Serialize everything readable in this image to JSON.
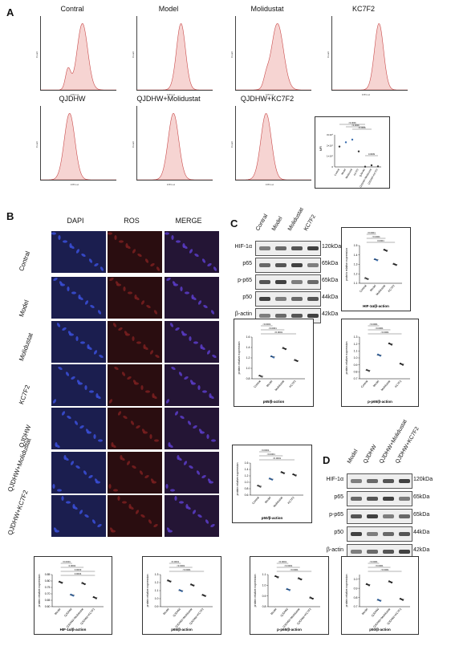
{
  "panel_a": {
    "letter": "A",
    "histograms": [
      {
        "title": "Contral",
        "xlabel": "FITC-H",
        "ylabel": "Count"
      },
      {
        "title": "Model",
        "xlabel": "FITC-H",
        "ylabel": "Count"
      },
      {
        "title": "Molidustat",
        "xlabel": "FITC-H",
        "ylabel": "Count"
      },
      {
        "title": "KC7F2",
        "xlabel": "FITC-H",
        "ylabel": "Count"
      },
      {
        "title": "QJDHW",
        "xlabel": "FITC-H",
        "ylabel": "Count"
      },
      {
        "title": "QJDHW+Molidustat",
        "xlabel": "FITC-H",
        "ylabel": "Count"
      },
      {
        "title": "QJDHW+KC7F2",
        "xlabel": "FITC-H",
        "ylabel": "Count"
      }
    ],
    "mfi_ylabel": "MFI",
    "mfi_yticks": [
      "0",
      "1×10⁴",
      "2×10⁴",
      "3×10⁴"
    ],
    "mfi_sig": [
      "<0.0001",
      "<0.0001",
      "<0.0001",
      "0.0009"
    ],
    "mfi_groups": [
      "Contral",
      "Model",
      "Molidustat",
      "KC7F2",
      "QJDHW",
      "QJDHW+Molidustat",
      "QJDHW+KC7F2"
    ]
  },
  "panel_b": {
    "letter": "B",
    "columns": [
      "DAPI",
      "ROS",
      "MERGE"
    ],
    "rows": [
      "Contral",
      "Model",
      "Molidustat",
      "KC7F2",
      "QJDHW",
      "QJDHW+Molidustat",
      "QJDHW+KC7F2"
    ]
  },
  "panel_c": {
    "letter": "C",
    "lanes": [
      "Contral",
      "Model",
      "Molidustat",
      "KC7F2"
    ],
    "proteins": [
      "HIF-1α",
      "p65",
      "p-p65",
      "p50",
      "β-actin"
    ],
    "sizes": [
      "120kDa",
      "65kDa",
      "65kDa",
      "44kDa",
      "42kDa"
    ]
  },
  "panel_d": {
    "letter": "D",
    "lanes": [
      "Model",
      "QJDHW",
      "QJDHW+Molidustat",
      "QJDHW+KC7F2"
    ],
    "proteins": [
      "HIF-1α",
      "p65",
      "p-p65",
      "p50",
      "β-actin"
    ],
    "sizes": [
      "120kDa",
      "65kDa",
      "65kDa",
      "44kDa",
      "42kDa"
    ]
  },
  "chart_data": [
    {
      "type": "scatter",
      "id": "c_hif",
      "xlabel": "HIF-1α/β-action",
      "ylabel": "protein relative expression",
      "categories": [
        "Contral",
        "Model",
        "Molidustat",
        "KC7F2"
      ],
      "values": [
        1.15,
        1.35,
        1.45,
        1.3
      ],
      "ylim": [
        1.1,
        1.5
      ],
      "yticks": [
        "1.1",
        "1.2",
        "1.3",
        "1.4",
        "1.5"
      ],
      "colors": [
        "#555555",
        "#3b6fb0",
        "#333333",
        "#333333"
      ],
      "sig": [
        "<0.0001",
        "<0.0001",
        "0.0001"
      ]
    },
    {
      "type": "scatter",
      "id": "c_p65",
      "xlabel": "p65/β-action",
      "ylabel": "protein relative expression",
      "categories": [
        "Contral",
        "Model",
        "Molidustat",
        "KC7F2"
      ],
      "values": [
        0.85,
        1.22,
        1.38,
        1.15
      ],
      "ylim": [
        0.8,
        1.6
      ],
      "yticks": [
        "0.8",
        "1.0",
        "1.2",
        "1.4",
        "1.6"
      ],
      "colors": [
        "#555555",
        "#3b6fb0",
        "#333333",
        "#333333"
      ],
      "sig": [
        "<0.0001",
        "<0.0001",
        "<0.0001"
      ]
    },
    {
      "type": "scatter",
      "id": "c_pp65",
      "xlabel": "p-p65/β-action",
      "ylabel": "protein relative expression",
      "categories": [
        "Contral",
        "Model",
        "Molidustat",
        "KC7F2"
      ],
      "values": [
        0.82,
        1.04,
        1.2,
        0.91
      ],
      "ylim": [
        0.7,
        1.3
      ],
      "yticks": [
        "0.7",
        "0.8",
        "0.9",
        "1.0",
        "1.1",
        "1.2",
        "1.3"
      ],
      "colors": [
        "#555555",
        "#3b6fb0",
        "#333333",
        "#333333"
      ],
      "sig": [
        "<0.0001",
        "<0.0001",
        "<0.0001"
      ]
    },
    {
      "type": "scatter",
      "id": "c_p50",
      "xlabel": "p50/β-action",
      "ylabel": "protein relative expression",
      "categories": [
        "Contral",
        "Model",
        "Molidustat",
        "KC7F2"
      ],
      "values": [
        0.88,
        1.1,
        1.3,
        1.23
      ],
      "ylim": [
        0.6,
        1.6
      ],
      "yticks": [
        "0.6",
        "0.8",
        "1.0",
        "1.2",
        "1.4",
        "1.6"
      ],
      "colors": [
        "#555555",
        "#3b6fb0",
        "#333333",
        "#333333"
      ],
      "sig": [
        "<0.0001",
        "<0.0001",
        "<0.0001"
      ]
    },
    {
      "type": "scatter",
      "id": "d_hif",
      "xlabel": "HIF-1α/β-action",
      "ylabel": "protein relative expression",
      "categories": [
        "Model",
        "QJDHW",
        "QJDHW+Molidustat",
        "QJDHW+KC7F2"
      ],
      "values": [
        0.79,
        0.69,
        0.78,
        0.67
      ],
      "ylim": [
        0.6,
        0.85
      ],
      "yticks": [
        "0.60",
        "0.65",
        "0.70",
        "0.75",
        "0.80",
        "0.85"
      ],
      "colors": [
        "#333333",
        "#3b6fb0",
        "#333333",
        "#333333"
      ],
      "sig": [
        "<0.0001",
        "0.0002",
        "0.0003",
        "0.0004"
      ]
    },
    {
      "type": "scatter",
      "id": "d_p65",
      "xlabel": "p65/β-action",
      "ylabel": "protein relative expression",
      "categories": [
        "Model",
        "QJDHW",
        "QJDHW+Molidustat",
        "QJDHW+KC7F2"
      ],
      "values": [
        1.22,
        1.1,
        1.17,
        1.04
      ],
      "ylim": [
        0.9,
        1.3
      ],
      "yticks": [
        "0.9",
        "1.0",
        "1.1",
        "1.2",
        "1.3"
      ],
      "colors": [
        "#333333",
        "#3b6fb0",
        "#333333",
        "#333333"
      ],
      "sig": [
        "<0.0001",
        "<0.0001",
        "<0.0001"
      ]
    },
    {
      "type": "scatter",
      "id": "d_pp65",
      "xlabel": "p-p65/β-action",
      "ylabel": "protein relative expression",
      "categories": [
        "Model",
        "QJDHW",
        "QJDHW+Molidustat",
        "QJDHW+KC7F2"
      ],
      "values": [
        1.08,
        0.96,
        1.06,
        0.88
      ],
      "ylim": [
        0.8,
        1.1
      ],
      "yticks": [
        "0.8",
        "0.9",
        "1.0",
        "1.1"
      ],
      "colors": [
        "#333333",
        "#3b6fb0",
        "#333333",
        "#333333"
      ],
      "sig": [
        "<0.0001",
        "<0.0001",
        "<0.0001"
      ]
    },
    {
      "type": "scatter",
      "id": "d_p50",
      "xlabel": "p50/β-action",
      "ylabel": "protein relative expression",
      "categories": [
        "Model",
        "QJDHW",
        "QJDHW+Molidustat",
        "QJDHW+KC7F2"
      ],
      "values": [
        0.94,
        0.77,
        0.97,
        0.78
      ],
      "ylim": [
        0.7,
        1.05
      ],
      "yticks": [
        "0.7",
        "0.8",
        "0.9",
        "1.0"
      ],
      "colors": [
        "#333333",
        "#3b6fb0",
        "#333333",
        "#333333"
      ],
      "sig": [
        "<0.0001",
        "<0.0001",
        "<0.0001"
      ]
    }
  ]
}
